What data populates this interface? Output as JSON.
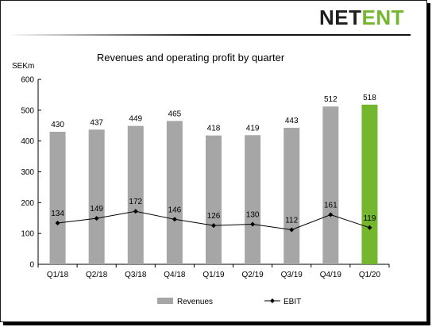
{
  "brand": {
    "logo_part1": "NET",
    "logo_part2": "ENT"
  },
  "chart_data": {
    "type": "bar",
    "title": "Revenues and operating profit by quarter",
    "ylabel": "SEKm",
    "xlabel": "",
    "ylim": [
      0,
      600
    ],
    "yticks": [
      0,
      100,
      200,
      300,
      400,
      500,
      600
    ],
    "categories": [
      "Q1/18",
      "Q2/18",
      "Q3/18",
      "Q4/18",
      "Q1/19",
      "Q2/19",
      "Q3/19",
      "Q4/19",
      "Q1/20"
    ],
    "series": [
      {
        "name": "Revenues",
        "type": "bar",
        "values": [
          430,
          437,
          449,
          465,
          418,
          419,
          443,
          512,
          518
        ],
        "color": "#a6a6a6",
        "highlight_color": "#74b72e",
        "highlight_last": true
      },
      {
        "name": "EBIT",
        "type": "line",
        "values": [
          134,
          149,
          172,
          146,
          126,
          130,
          112,
          161,
          119
        ],
        "color": "#000000"
      }
    ],
    "legend_position": "bottom",
    "grid": false
  }
}
